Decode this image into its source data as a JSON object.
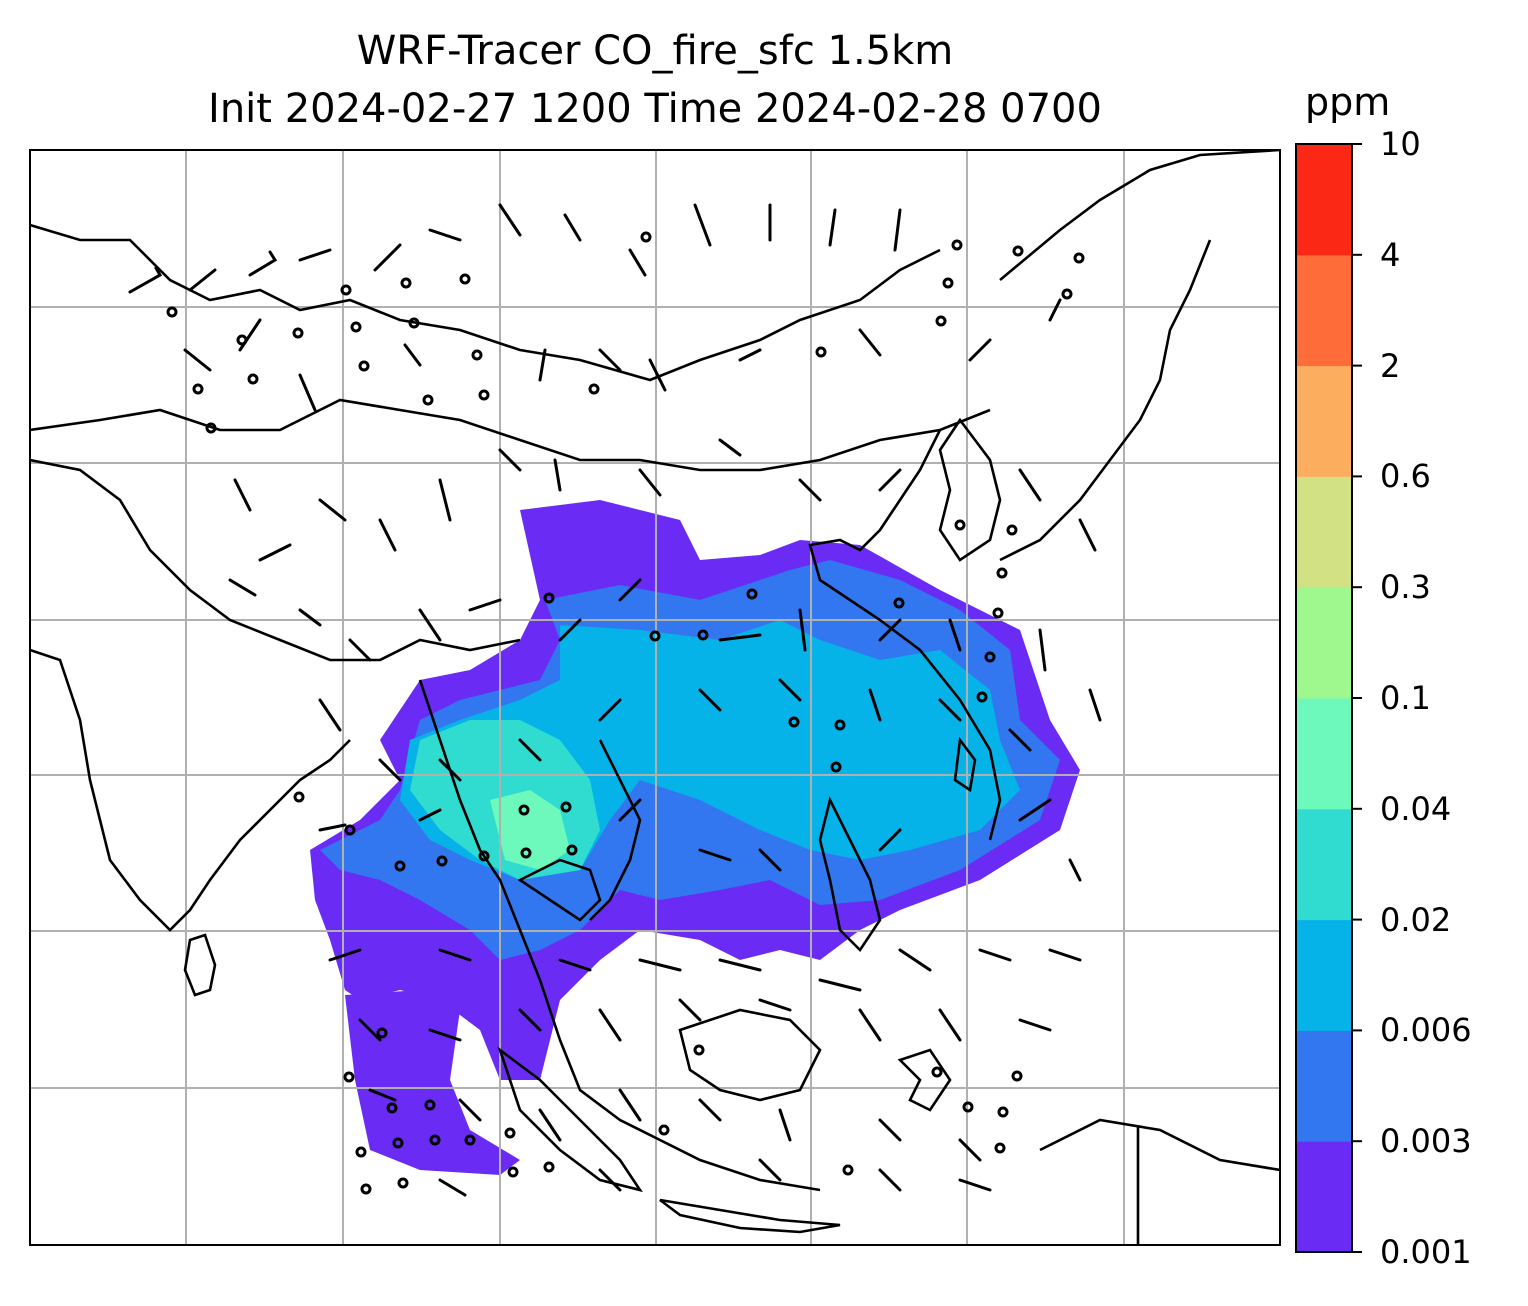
{
  "title_line1": "WRF-Tracer CO_fire_sfc 1.5km",
  "title_line2": "Init 2024-02-27 1200 Time 2024-02-28 0700",
  "colorbar": {
    "unit": "ppm",
    "levels": [
      "0.001",
      "0.003",
      "0.006",
      "0.02",
      "0.04",
      "0.1",
      "0.3",
      "0.6",
      "2",
      "4",
      "10"
    ],
    "colors": [
      "#6a2cf5",
      "#3277f0",
      "#06b3e8",
      "#30dcd0",
      "#6cf9bb",
      "#9ef88e",
      "#d1e183",
      "#fcae5e",
      "#fe6c39",
      "#fb2816"
    ]
  },
  "map": {
    "coastline_color": "#000000",
    "grid_color": "#b0b0b0",
    "plume_colors": [
      "#6a2cf5",
      "#3277f0",
      "#06b3e8",
      "#30dcd0",
      "#6cf9bb"
    ]
  }
}
